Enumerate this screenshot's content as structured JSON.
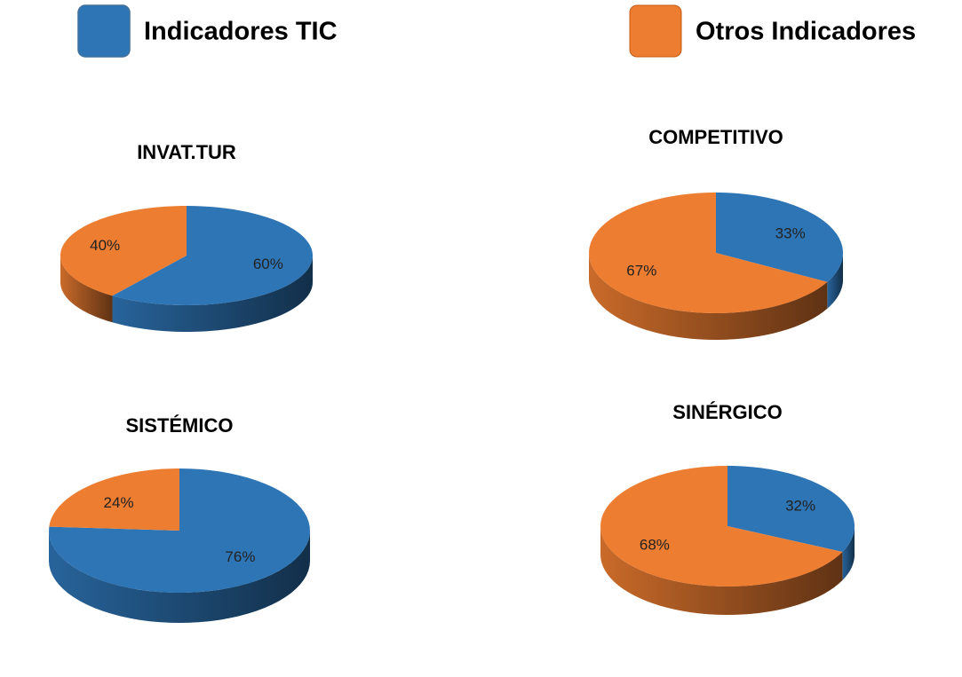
{
  "legend": {
    "items": [
      {
        "name": "Indicadores TIC",
        "color": "#2e75b6"
      },
      {
        "name": "Otros Indicadores",
        "color": "#ed7d31"
      }
    ]
  },
  "chart_data": [
    {
      "type": "pie",
      "title": "INVAT.TUR",
      "values": [
        60,
        40
      ],
      "value_labels": [
        "60%",
        "40%"
      ]
    },
    {
      "type": "pie",
      "title": "COMPETITIVO",
      "values": [
        33,
        67
      ],
      "value_labels": [
        "33%",
        "67%"
      ]
    },
    {
      "type": "pie",
      "title": "SISTÉMICO",
      "values": [
        76,
        24
      ],
      "value_labels": [
        "76%",
        "24%"
      ]
    },
    {
      "type": "pie",
      "title": "SINÉRGICO",
      "values": [
        32,
        68
      ],
      "value_labels": [
        "32%",
        "68%"
      ]
    }
  ]
}
